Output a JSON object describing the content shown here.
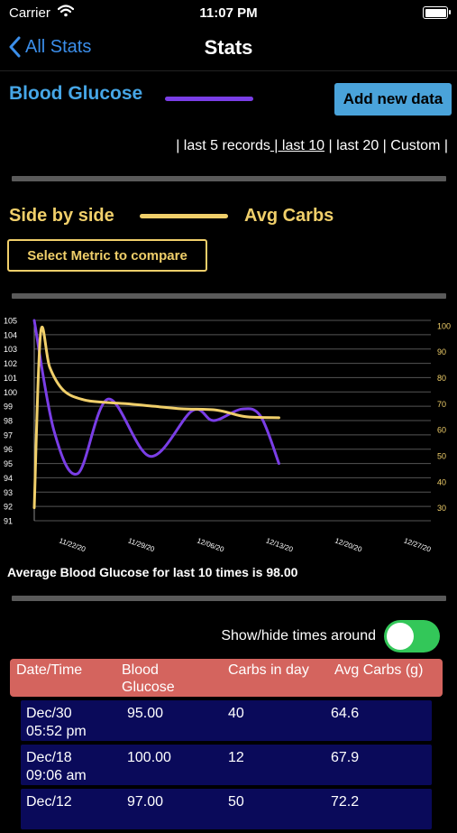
{
  "status_bar": {
    "carrier": "Carrier",
    "time": "11:07 PM"
  },
  "nav": {
    "back_label": "All Stats",
    "title": "Stats"
  },
  "metric": {
    "title": "Blood Glucose",
    "color": "#7a3ee6",
    "add_button": "Add new data"
  },
  "ranges": {
    "items": [
      "| last 5 records",
      " | last 10",
      " | last 20",
      " | Custom |"
    ],
    "active_index": 1
  },
  "compare": {
    "title": "Side by side",
    "metric_label": "Avg Carbs",
    "color": "#f0cf6a",
    "select_button": "Select Metric to compare"
  },
  "chart_data": {
    "type": "line",
    "x": [
      "11/22/20",
      "11/29/20",
      "12/06/20",
      "12/13/20",
      "12/20/20",
      "12/27/20"
    ],
    "y_left_ticks": [
      "105",
      "104",
      "103",
      "102",
      "101",
      "100",
      "99",
      "98",
      "97",
      "96",
      "95",
      "94",
      "93",
      "92",
      "91"
    ],
    "y_right_ticks": [
      "100",
      "90",
      "80",
      "70",
      "60",
      "50",
      "40",
      "30"
    ],
    "ylim_left": [
      91,
      105
    ],
    "ylim_right": [
      25,
      102
    ],
    "grid": true,
    "series": [
      {
        "name": "Blood Glucose",
        "axis": "left",
        "color": "#7a3ee6",
        "points": [
          [
            0,
            105
          ],
          [
            0.28,
            97.3
          ],
          [
            0.62,
            94.3
          ],
          [
            1.05,
            99.5
          ],
          [
            1.65,
            95.5
          ],
          [
            2.25,
            98.7
          ],
          [
            2.55,
            98.0
          ],
          [
            2.95,
            98.8
          ],
          [
            3.22,
            98.3
          ],
          [
            3.48,
            95.0
          ]
        ]
      },
      {
        "name": "Avg Carbs",
        "axis": "right",
        "color": "#f0cf6a",
        "points": [
          [
            0,
            30
          ],
          [
            0.09,
            97
          ],
          [
            0.22,
            84
          ],
          [
            0.42,
            75
          ],
          [
            0.7,
            71.5
          ],
          [
            1.0,
            70.5
          ],
          [
            1.3,
            70
          ],
          [
            1.7,
            69
          ],
          [
            2.1,
            68
          ],
          [
            2.6,
            67.5
          ],
          [
            3.0,
            65
          ],
          [
            3.48,
            64.6
          ]
        ]
      }
    ]
  },
  "average_text": "Average Blood Glucose for last 10 times is 98.00",
  "toggle": {
    "label": "Show/hide times around",
    "on": true
  },
  "table": {
    "columns": [
      "Date/Time",
      "Blood\nGlucose",
      "Carbs in day",
      "Avg Carbs (g)"
    ],
    "rows": [
      {
        "date": "Dec/30\n05:52 pm",
        "glucose": "95.00",
        "carbs": "40",
        "avg_carbs": "64.6"
      },
      {
        "date": "Dec/18\n09:06 am",
        "glucose": "100.00",
        "carbs": "12",
        "avg_carbs": "67.9"
      },
      {
        "date": "Dec/12",
        "glucose": "97.00",
        "carbs": "50",
        "avg_carbs": "72.2"
      }
    ]
  }
}
